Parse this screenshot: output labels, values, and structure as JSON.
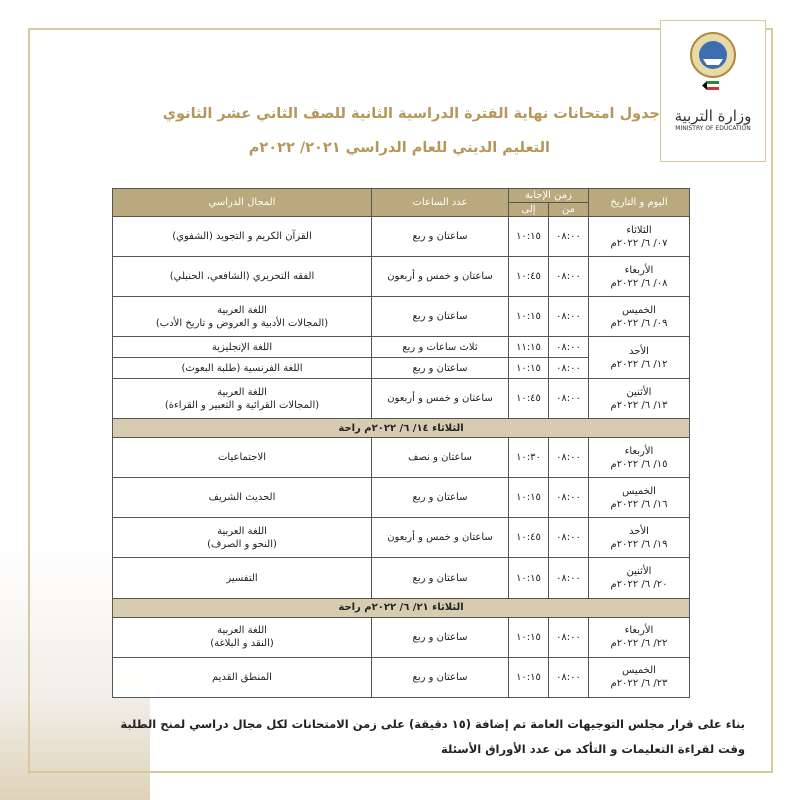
{
  "logo": {
    "name": "وزارة التربية",
    "name_en": "MINISTRY OF EDUCATION"
  },
  "header": {
    "title": "جدول امتحانات نهاية الفترة الدراسية الثانية للصف الثاني عشر الثانوي",
    "subtitle": "التعليم الديني للعام الدراسي ٢٠٢١/ ٢٠٢٢م"
  },
  "table": {
    "columns": {
      "day": "اليوم و التاريخ",
      "time": "زمن الإجابة",
      "from": "من",
      "to": "إلى",
      "hours": "عدد الساعات",
      "subject": "المجال الدراسي"
    },
    "rows": [
      {
        "day": "الثلاثاء",
        "date": "٠٧/ ٦/ ٢٠٢٢م",
        "sessions": [
          {
            "from": "٠٨:٠٠",
            "to": "١٠:١٥",
            "hours": "ساعتان و ربع",
            "subject": [
              "القرآن الكريم و التجويد (الشفوي)"
            ]
          }
        ]
      },
      {
        "day": "الأربعاء",
        "date": "٠٨/ ٦/ ٢٠٢٢م",
        "sessions": [
          {
            "from": "٠٨:٠٠",
            "to": "١٠:٤٥",
            "hours": "ساعتان و خمس و أربعون",
            "subject": [
              "الفقه التحريري (الشافعي، الحنبلي)"
            ]
          }
        ]
      },
      {
        "day": "الخميس",
        "date": "٠٩/ ٦/ ٢٠٢٢م",
        "sessions": [
          {
            "from": "٠٨:٠٠",
            "to": "١٠:١٥",
            "hours": "ساعتان و ربع",
            "subject": [
              "اللغة العربية",
              "(المجالات الأدبية و العروض و تاريخ الأدب)"
            ]
          }
        ]
      },
      {
        "day": "الأحد",
        "date": "١٢/ ٦/ ٢٠٢٢م",
        "sessions": [
          {
            "from": "٠٨:٠٠",
            "to": "١١:١٥",
            "hours": "ثلاث ساعات و ربع",
            "subject": [
              "اللغة الإنجليزية"
            ]
          },
          {
            "from": "٠٨:٠٠",
            "to": "١٠:١٥",
            "hours": "ساعتان و ربع",
            "subject": [
              "اللغة الفرنسية (طلبة البعوث)"
            ]
          }
        ]
      },
      {
        "day": "الأثنين",
        "date": "١٣/ ٦/ ٢٠٢٢م",
        "sessions": [
          {
            "from": "٠٨:٠٠",
            "to": "١٠:٤٥",
            "hours": "ساعتان و خمس و أربعون",
            "subject": [
              "اللغة العربية",
              "(المجالات القرائية و التعبير و القراءة)"
            ]
          }
        ]
      },
      {
        "rest": "الثلاثاء ١٤/ ٦/ ٢٠٢٢م راحة"
      },
      {
        "day": "الأربعاء",
        "date": "١٥/ ٦/ ٢٠٢٢م",
        "sessions": [
          {
            "from": "٠٨:٠٠",
            "to": "١٠:٣٠",
            "hours": "ساعتان و نصف",
            "subject": [
              "الاجتماعيات"
            ]
          }
        ]
      },
      {
        "day": "الخميس",
        "date": "١٦/ ٦/ ٢٠٢٢م",
        "sessions": [
          {
            "from": "٠٨:٠٠",
            "to": "١٠:١٥",
            "hours": "ساعتان و ربع",
            "subject": [
              "الحديث الشريف"
            ]
          }
        ]
      },
      {
        "day": "الأحد",
        "date": "١٩/ ٦/ ٢٠٢٢م",
        "sessions": [
          {
            "from": "٠٨:٠٠",
            "to": "١٠:٤٥",
            "hours": "ساعتان و خمس و أربعون",
            "subject": [
              "اللغة العربية",
              "(النحو و الصرف)"
            ]
          }
        ]
      },
      {
        "day": "الأثنين",
        "date": "٢٠/ ٦/ ٢٠٢٢م",
        "sessions": [
          {
            "from": "٠٨:٠٠",
            "to": "١٠:١٥",
            "hours": "ساعتان و ربع",
            "subject": [
              "التفسير"
            ]
          }
        ]
      },
      {
        "rest": "الثلاثاء ٢١/ ٦/ ٢٠٢٢م راحة"
      },
      {
        "day": "الأربعاء",
        "date": "٢٢/ ٦/ ٢٠٢٢م",
        "sessions": [
          {
            "from": "٠٨:٠٠",
            "to": "١٠:١٥",
            "hours": "ساعتان و ربع",
            "subject": [
              "اللغة العربية",
              "(النقد و البلاغة)"
            ]
          }
        ]
      },
      {
        "day": "الخميس",
        "date": "٢٣/ ٦/ ٢٠٢٢م",
        "sessions": [
          {
            "from": "٠٨:٠٠",
            "to": "١٠:١٥",
            "hours": "ساعتان و ربع",
            "subject": [
              "المنطق القديم"
            ]
          }
        ]
      }
    ]
  },
  "footer": {
    "lines": [
      "بناء على قرار مجلس التوجيهات العامة تم إضافة (١٥ دقيقة) على زمن الامتحانات لكل مجال دراسي لمنح الطلبة",
      "وقت لقراءة التعليمات و التأكد من عدد الأوراق الأسئلة"
    ]
  }
}
